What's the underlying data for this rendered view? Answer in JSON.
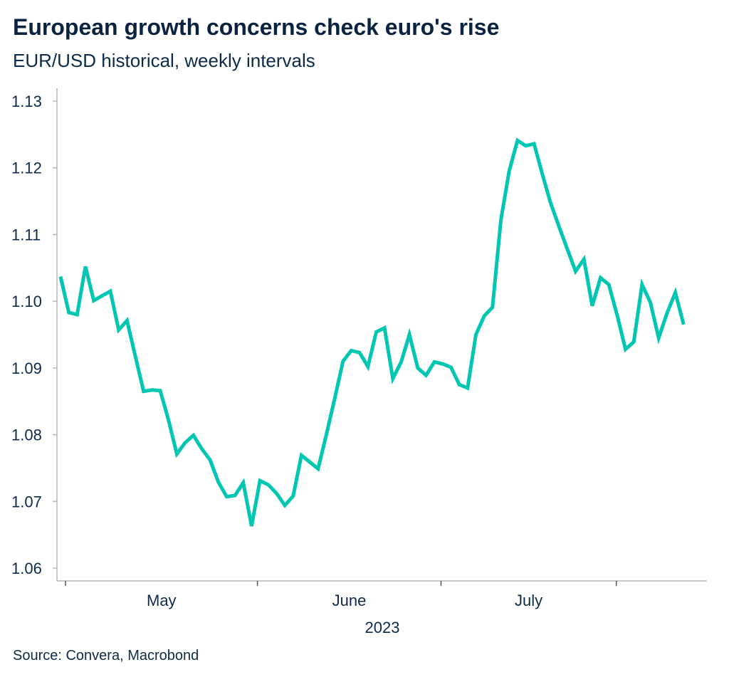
{
  "title": "European growth concerns check euro's rise",
  "subtitle": "EUR/USD historical, weekly intervals",
  "source": "Source: Convera, Macrobond",
  "colors": {
    "line": "#00c6b2",
    "title": "#0b2341",
    "axis": "#b5b5b5"
  },
  "chart_data": {
    "type": "line",
    "title": "European growth concerns check euro's rise",
    "subtitle": "EUR/USD historical, weekly intervals",
    "xlabel": "2023",
    "ylabel": "",
    "ylim": [
      1.06,
      1.13
    ],
    "yticks": [
      "1.06",
      "1.07",
      "1.08",
      "1.09",
      "1.10",
      "1.11",
      "1.12",
      "1.13"
    ],
    "xticks": [
      "May",
      "June",
      "July"
    ],
    "grid": false,
    "series": [
      {
        "color": "#00c6b2",
        "values": [
          1.1037,
          1.0983,
          1.098,
          1.1052,
          1.1001,
          1.1008,
          1.1015,
          1.0957,
          1.0971,
          1.0918,
          1.0865,
          1.0867,
          1.0866,
          1.0822,
          1.0771,
          1.0788,
          1.0799,
          1.0779,
          1.0762,
          1.0729,
          1.0707,
          1.0709,
          1.0728,
          1.0663,
          1.0731,
          1.0725,
          1.0712,
          1.0694,
          1.0708,
          1.0769,
          1.0759,
          1.0749,
          1.08,
          1.0854,
          1.091,
          1.0926,
          1.0923,
          1.0902,
          1.0954,
          1.096,
          1.0884,
          1.0909,
          1.095,
          1.09,
          1.0889,
          1.0909,
          1.0906,
          1.0901,
          1.0875,
          1.087,
          1.095,
          1.0978,
          1.0991,
          1.1121,
          1.1195,
          1.1241,
          1.1233,
          1.1236,
          1.119,
          1.1147,
          1.1112,
          1.1078,
          1.1045,
          1.1063,
          1.0993,
          1.1035,
          1.1025,
          1.0979,
          1.0928,
          1.0939,
          1.1025,
          1.0998,
          1.0945,
          1.0982,
          1.1013,
          1.0965
        ]
      }
    ]
  }
}
